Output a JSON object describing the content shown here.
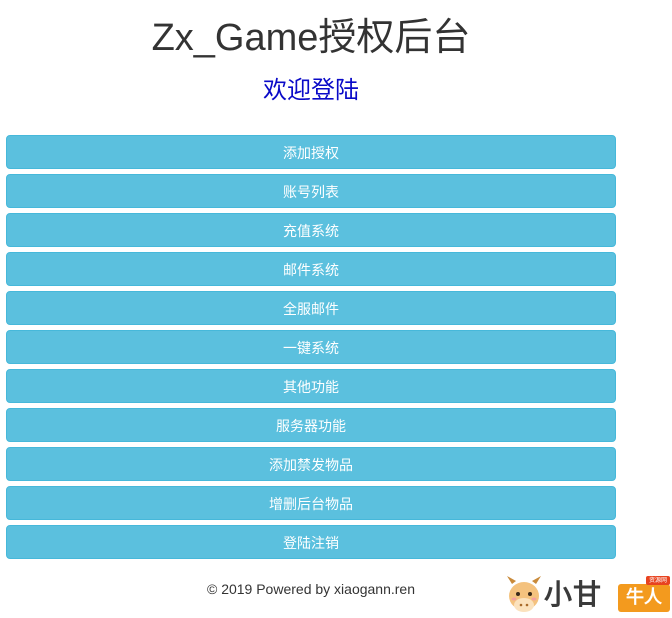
{
  "header": {
    "title": "Zx_Game授权后台",
    "subtitle": "欢迎登陆"
  },
  "menu": {
    "items": [
      {
        "label": "添加授权"
      },
      {
        "label": "账号列表"
      },
      {
        "label": "充值系统"
      },
      {
        "label": "邮件系统"
      },
      {
        "label": "全服邮件"
      },
      {
        "label": "一键系统"
      },
      {
        "label": "其他功能"
      },
      {
        "label": "服务器功能"
      },
      {
        "label": "添加禁发物品"
      },
      {
        "label": "增删后台物品"
      },
      {
        "label": "登陆注销"
      }
    ]
  },
  "footer": {
    "text": "© 2019 Powered by xiaogann.ren"
  },
  "watermark": {
    "icon": "ox-mascot-icon",
    "brand": "小甘",
    "tag": "牛人",
    "tag_top": "资源网"
  },
  "colors": {
    "button_bg": "#5bc0de",
    "button_border": "#46b8da",
    "subtitle": "#0a0ac8",
    "title": "#333333"
  }
}
